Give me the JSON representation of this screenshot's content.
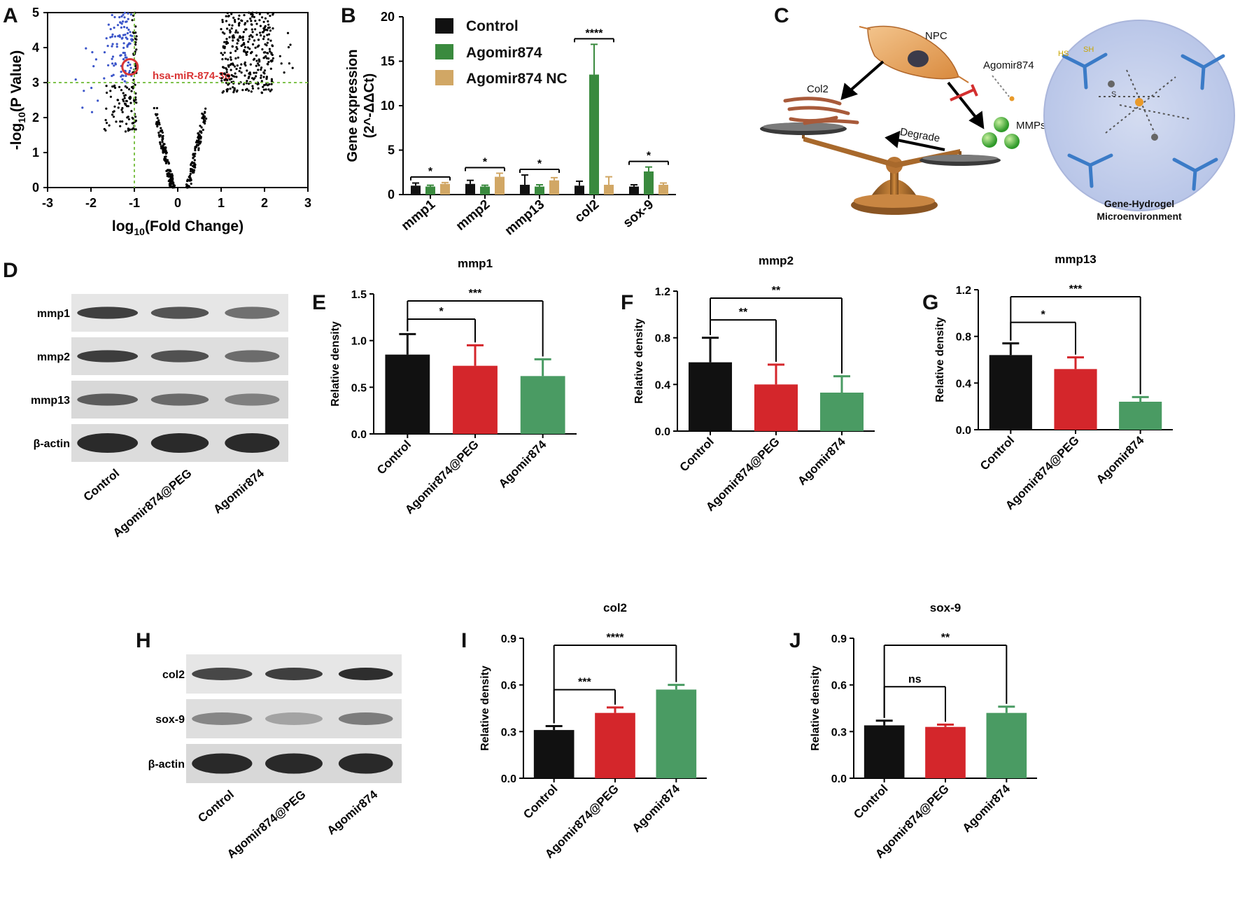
{
  "panel_labels": [
    "A",
    "B",
    "C",
    "D",
    "E",
    "F",
    "G",
    "H",
    "I",
    "J"
  ],
  "colors": {
    "control": "#111111",
    "agomir_peg": "#d4262b",
    "agomir874_green": "#4a9b63",
    "agomir874_b": "#3a8a3e",
    "agomir874nc": "#d1a765",
    "volcano_blue": "#3b55c9",
    "threshold": "#7fc24c",
    "highlight": "#d93535"
  },
  "chart_data": [
    {
      "id": "A",
      "type": "scatter",
      "title": "",
      "xlabel": "log10(Fold Change)",
      "ylabel": "-log10(P Value)",
      "xlim": [
        -3,
        3
      ],
      "ylim": [
        0,
        5
      ],
      "xticks": [
        "-3",
        "-2",
        "-1",
        "0",
        "1",
        "2",
        "3"
      ],
      "yticks": [
        "0",
        "1",
        "2",
        "3",
        "4",
        "5"
      ],
      "thresholds": {
        "x": -1,
        "y": 3
      },
      "annotation": "hsa-miR-874-3p",
      "highlight_point": {
        "x": -1.1,
        "y": 3.45
      },
      "clusters": [
        {
          "name": "left",
          "x_range": [
            -1.7,
            -0.95
          ],
          "y_range": [
            1.6,
            5.0
          ]
        },
        {
          "name": "left_sparse",
          "x_range": [
            -2.4,
            -1.8
          ],
          "y_range": [
            2.0,
            4.2
          ]
        },
        {
          "name": "center",
          "x_range": [
            -0.5,
            0.7
          ],
          "y_range": [
            0,
            2.3
          ]
        },
        {
          "name": "right",
          "x_range": [
            1.0,
            2.2
          ],
          "y_range": [
            2.7,
            5.0
          ]
        },
        {
          "name": "right_sparse",
          "x_range": [
            2.3,
            2.7
          ],
          "y_range": [
            3.2,
            4.7
          ]
        }
      ]
    },
    {
      "id": "B",
      "type": "bar",
      "title": "",
      "xlabel": "",
      "ylabel": "Gene expression (2^-ΔΔCt)",
      "ylabel_line1": "Gene expression",
      "ylabel_line2": "(2^-ΔΔCt)",
      "ylim": [
        0,
        20
      ],
      "yticks": [
        "0",
        "5",
        "10",
        "15",
        "20"
      ],
      "categories": [
        "mmp1",
        "mmp2",
        "mmp13",
        "col2",
        "sox-9"
      ],
      "series": [
        {
          "name": "Control",
          "values": [
            1.0,
            1.2,
            1.1,
            1.0,
            0.9
          ],
          "errors": [
            0.3,
            0.4,
            1.1,
            0.5,
            0.2
          ]
        },
        {
          "name": "Agomir874",
          "values": [
            0.9,
            0.9,
            0.9,
            13.5,
            2.6
          ],
          "errors": [
            0.15,
            0.15,
            0.2,
            3.4,
            0.5
          ]
        },
        {
          "name": "Agomir874 NC",
          "values": [
            1.2,
            2.0,
            1.6,
            1.1,
            1.1
          ],
          "errors": [
            0.15,
            0.4,
            0.3,
            0.9,
            0.2
          ]
        }
      ],
      "significance": [
        "*",
        "*",
        "*",
        "****",
        "*"
      ]
    },
    {
      "id": "E",
      "type": "bar",
      "title": "mmp1",
      "xlabel": "",
      "ylabel": "Relative density",
      "ylim": [
        0,
        1.5
      ],
      "yticks": [
        "0.0",
        "0.5",
        "1.0",
        "1.5"
      ],
      "categories": [
        "Control",
        "Agomir874@PEG",
        "Agomir874"
      ],
      "values": [
        0.85,
        0.73,
        0.62
      ],
      "errors": [
        0.22,
        0.22,
        0.18
      ],
      "significance": [
        {
          "from": 0,
          "to": 1,
          "label": "*"
        },
        {
          "from": 0,
          "to": 2,
          "label": "***"
        }
      ]
    },
    {
      "id": "F",
      "type": "bar",
      "title": "mmp2",
      "xlabel": "",
      "ylabel": "Relative density",
      "ylim": [
        0,
        1.2
      ],
      "yticks": [
        "0.0",
        "0.4",
        "0.8",
        "1.2"
      ],
      "categories": [
        "Control",
        "Agomir874@PEG",
        "Agomir874"
      ],
      "values": [
        0.59,
        0.4,
        0.33
      ],
      "errors": [
        0.21,
        0.17,
        0.14
      ],
      "significance": [
        {
          "from": 0,
          "to": 1,
          "label": "**"
        },
        {
          "from": 0,
          "to": 2,
          "label": "**"
        }
      ]
    },
    {
      "id": "G",
      "type": "bar",
      "title": "mmp13",
      "xlabel": "",
      "ylabel": "Relative density",
      "ylim": [
        0,
        1.2
      ],
      "yticks": [
        "0.0",
        "0.4",
        "0.8",
        "1.2"
      ],
      "categories": [
        "Control",
        "Agomir874@PEG",
        "Agomir874"
      ],
      "values": [
        0.64,
        0.52,
        0.24
      ],
      "errors": [
        0.1,
        0.1,
        0.04
      ],
      "significance": [
        {
          "from": 0,
          "to": 1,
          "label": "*"
        },
        {
          "from": 0,
          "to": 2,
          "label": "***"
        }
      ]
    },
    {
      "id": "I",
      "type": "bar",
      "title": "col2",
      "xlabel": "",
      "ylabel": "Relative density",
      "ylim": [
        0,
        0.9
      ],
      "yticks": [
        "0.0",
        "0.3",
        "0.6",
        "0.9"
      ],
      "categories": [
        "Control",
        "Agomir874@PEG",
        "Agomir874"
      ],
      "values": [
        0.31,
        0.42,
        0.57
      ],
      "errors": [
        0.025,
        0.035,
        0.03
      ],
      "significance": [
        {
          "from": 0,
          "to": 1,
          "label": "***"
        },
        {
          "from": 0,
          "to": 2,
          "label": "****"
        }
      ]
    },
    {
      "id": "J",
      "type": "bar",
      "title": "sox-9",
      "xlabel": "",
      "ylabel": "Relative density",
      "ylim": [
        0,
        0.9
      ],
      "yticks": [
        "0.0",
        "0.3",
        "0.6",
        "0.9"
      ],
      "categories": [
        "Control",
        "Agomir874@PEG",
        "Agomir874"
      ],
      "values": [
        0.34,
        0.33,
        0.42
      ],
      "errors": [
        0.03,
        0.015,
        0.04
      ],
      "significance": [
        {
          "from": 0,
          "to": 1,
          "label": "ns"
        },
        {
          "from": 0,
          "to": 2,
          "label": "**"
        }
      ]
    }
  ],
  "blots": {
    "D": {
      "bands": [
        "mmp1",
        "mmp2",
        "mmp13",
        "β-actin"
      ],
      "lanes": [
        "Control",
        "Agomir874@PEG",
        "Agomir874"
      ]
    },
    "H": {
      "bands": [
        "col2",
        "sox-9",
        "β-actin"
      ],
      "lanes": [
        "Control",
        "Agomir874@PEG",
        "Agomir874"
      ]
    }
  },
  "schematic": {
    "npc": "NPC",
    "col2": "Col2",
    "agomir": "Agomir874",
    "degrade": "Degrade",
    "mmps": "MMPs",
    "hydrogel_line1": "Gene-Hydrogel",
    "hydrogel_line2": "Microenvironment",
    "sh": "SH",
    "hs": "HS",
    "s": "S"
  }
}
